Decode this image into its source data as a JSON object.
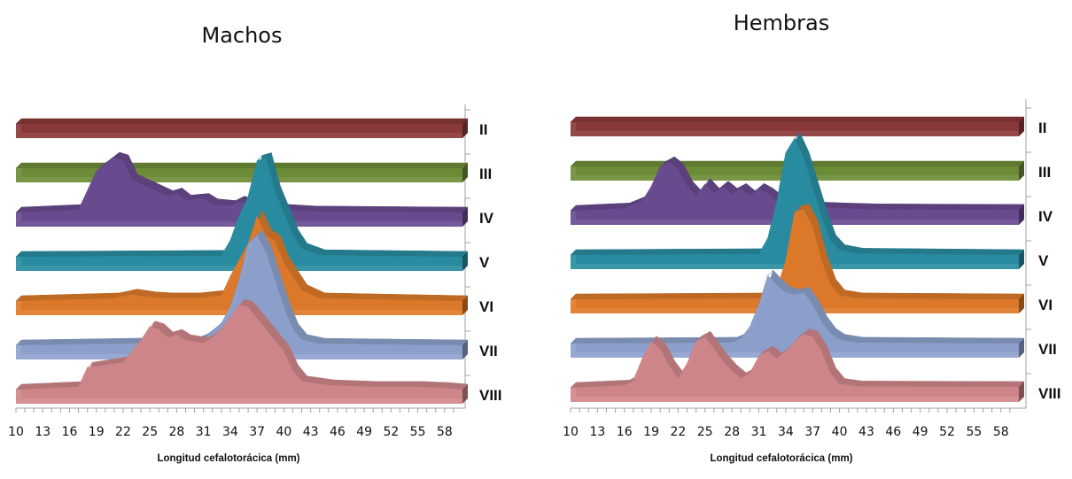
{
  "chart_data": [
    {
      "type": "area",
      "title": "Machos",
      "xlabel": "Longitud cefalotorácica  (mm)",
      "x_ticks": [
        10,
        13,
        16,
        19,
        22,
        25,
        28,
        31,
        34,
        37,
        40,
        43,
        46,
        49,
        52,
        55,
        58
      ],
      "xlim": [
        10,
        60
      ],
      "series_order_back_to_front": [
        "II",
        "III",
        "IV",
        "V",
        "VI",
        "VII",
        "VIII"
      ],
      "series": [
        {
          "name": "II",
          "color": "#8c3a3a",
          "values": [
            [
              10,
              0
            ],
            [
              60,
              0
            ]
          ]
        },
        {
          "name": "III",
          "color": "#6f8e38",
          "values": [
            [
              10,
              0
            ],
            [
              60,
              0
            ]
          ]
        },
        {
          "name": "IV",
          "color": "#6a4c92",
          "values": [
            [
              10,
              0
            ],
            [
              17,
              0.05
            ],
            [
              19,
              0.75
            ],
            [
              21,
              1.0
            ],
            [
              22,
              0.95
            ],
            [
              23,
              0.6
            ],
            [
              25,
              0.45
            ],
            [
              27,
              0.3
            ],
            [
              28,
              0.35
            ],
            [
              29,
              0.22
            ],
            [
              31,
              0.25
            ],
            [
              32,
              0.15
            ],
            [
              34,
              0.12
            ],
            [
              35,
              0.2
            ],
            [
              36,
              0.15
            ],
            [
              38,
              0.1
            ],
            [
              40,
              0.05
            ],
            [
              43,
              0.02
            ],
            [
              60,
              0
            ]
          ]
        },
        {
          "name": "V",
          "color": "#2a8ea3",
          "values": [
            [
              10,
              0
            ],
            [
              33,
              0.02
            ],
            [
              34,
              0.3
            ],
            [
              35,
              0.75
            ],
            [
              36,
              1.1
            ],
            [
              37,
              1.75
            ],
            [
              38,
              1.8
            ],
            [
              39,
              1.2
            ],
            [
              40,
              0.8
            ],
            [
              41,
              0.4
            ],
            [
              42,
              0.15
            ],
            [
              44,
              0.03
            ],
            [
              60,
              0
            ]
          ]
        },
        {
          "name": "VI",
          "color": "#e07b2a",
          "values": [
            [
              10,
              0
            ],
            [
              21,
              0.05
            ],
            [
              23,
              0.12
            ],
            [
              25,
              0.07
            ],
            [
              27,
              0.05
            ],
            [
              30,
              0.05
            ],
            [
              33,
              0.1
            ],
            [
              34,
              0.45
            ],
            [
              36,
              1.05
            ],
            [
              37,
              1.55
            ],
            [
              38,
              1.2
            ],
            [
              39,
              1.1
            ],
            [
              40,
              0.7
            ],
            [
              42,
              0.2
            ],
            [
              44,
              0.05
            ],
            [
              60,
              0
            ]
          ]
        },
        {
          "name": "VII",
          "color": "#8fa3cf",
          "values": [
            [
              10,
              0
            ],
            [
              30,
              0.05
            ],
            [
              31,
              0.12
            ],
            [
              32,
              0.25
            ],
            [
              33,
              0.4
            ],
            [
              34,
              0.7
            ],
            [
              35,
              1.2
            ],
            [
              36,
              1.85
            ],
            [
              37,
              2.0
            ],
            [
              38,
              1.7
            ],
            [
              39,
              1.2
            ],
            [
              40,
              0.7
            ],
            [
              41,
              0.3
            ],
            [
              42,
              0.1
            ],
            [
              44,
              0.03
            ],
            [
              60,
              0
            ]
          ]
        },
        {
          "name": "VIII",
          "color": "#d2888c",
          "values": [
            [
              10,
              0
            ],
            [
              17,
              0.05
            ],
            [
              18,
              0.4
            ],
            [
              20,
              0.45
            ],
            [
              22,
              0.5
            ],
            [
              24,
              0.9
            ],
            [
              25,
              1.15
            ],
            [
              26,
              1.1
            ],
            [
              27,
              0.95
            ],
            [
              28,
              1.0
            ],
            [
              29,
              0.9
            ],
            [
              31,
              0.85
            ],
            [
              32,
              0.95
            ],
            [
              33,
              1.1
            ],
            [
              35,
              1.55
            ],
            [
              36,
              1.5
            ],
            [
              38,
              1.1
            ],
            [
              40,
              0.7
            ],
            [
              41,
              0.35
            ],
            [
              42,
              0.15
            ],
            [
              45,
              0.08
            ],
            [
              50,
              0.05
            ],
            [
              55,
              0.05
            ],
            [
              58,
              0.03
            ],
            [
              60,
              0
            ]
          ]
        }
      ]
    },
    {
      "type": "area",
      "title": "Hembras",
      "xlabel": "Longitud cefalotorácica  (mm)",
      "x_ticks": [
        10,
        13,
        16,
        19,
        22,
        25,
        28,
        31,
        34,
        37,
        40,
        43,
        46,
        49,
        52,
        55,
        58
      ],
      "xlim": [
        10,
        60
      ],
      "series_order_back_to_front": [
        "II",
        "III",
        "IV",
        "V",
        "VI",
        "VII",
        "VIII"
      ],
      "series": [
        {
          "name": "II",
          "color": "#8c3a3a",
          "values": [
            [
              10,
              0
            ],
            [
              60,
              0
            ]
          ]
        },
        {
          "name": "III",
          "color": "#6f8e38",
          "values": [
            [
              10,
              0
            ],
            [
              60,
              0
            ]
          ]
        },
        {
          "name": "IV",
          "color": "#6a4c92",
          "values": [
            [
              10,
              0
            ],
            [
              16,
              0.05
            ],
            [
              18,
              0.2
            ],
            [
              19,
              0.5
            ],
            [
              20,
              0.9
            ],
            [
              21,
              1.0
            ],
            [
              22,
              0.85
            ],
            [
              23,
              0.5
            ],
            [
              24,
              0.3
            ],
            [
              25,
              0.55
            ],
            [
              26,
              0.35
            ],
            [
              27,
              0.5
            ],
            [
              28,
              0.35
            ],
            [
              29,
              0.45
            ],
            [
              30,
              0.3
            ],
            [
              31,
              0.45
            ],
            [
              32,
              0.35
            ],
            [
              33,
              0.2
            ],
            [
              35,
              0.1
            ],
            [
              37,
              0.07
            ],
            [
              40,
              0.05
            ],
            [
              44,
              0.03
            ],
            [
              60,
              0.02
            ]
          ]
        },
        {
          "name": "V",
          "color": "#2a8ea3",
          "values": [
            [
              10,
              0
            ],
            [
              31,
              0.02
            ],
            [
              32,
              0.35
            ],
            [
              33,
              1.1
            ],
            [
              34,
              2.1
            ],
            [
              35,
              2.4
            ],
            [
              36,
              2.0
            ],
            [
              37,
              1.4
            ],
            [
              38,
              0.8
            ],
            [
              39,
              0.3
            ],
            [
              40,
              0.1
            ],
            [
              42,
              0.03
            ],
            [
              60,
              0
            ]
          ]
        },
        {
          "name": "VI",
          "color": "#e07b2a",
          "values": [
            [
              10,
              0
            ],
            [
              32,
              0.02
            ],
            [
              33,
              0.2
            ],
            [
              34,
              0.8
            ],
            [
              35,
              1.8
            ],
            [
              36,
              1.85
            ],
            [
              37,
              1.5
            ],
            [
              38,
              0.8
            ],
            [
              39,
              0.3
            ],
            [
              40,
              0.08
            ],
            [
              42,
              0.02
            ],
            [
              60,
              0
            ]
          ]
        },
        {
          "name": "VII",
          "color": "#8fa3cf",
          "values": [
            [
              10,
              0
            ],
            [
              28,
              0.02
            ],
            [
              29,
              0.1
            ],
            [
              30,
              0.35
            ],
            [
              31,
              0.8
            ],
            [
              32,
              1.4
            ],
            [
              33,
              1.2
            ],
            [
              34,
              1.05
            ],
            [
              35,
              1.0
            ],
            [
              36,
              1.05
            ],
            [
              37,
              0.8
            ],
            [
              38,
              0.45
            ],
            [
              39,
              0.2
            ],
            [
              40,
              0.08
            ],
            [
              42,
              0.02
            ],
            [
              60,
              0
            ]
          ]
        },
        {
          "name": "VIII",
          "color": "#d2888c",
          "values": [
            [
              10,
              0
            ],
            [
              16,
              0.05
            ],
            [
              17,
              0.15
            ],
            [
              18,
              0.6
            ],
            [
              19,
              0.95
            ],
            [
              20,
              0.8
            ],
            [
              21,
              0.45
            ],
            [
              22,
              0.2
            ],
            [
              23,
              0.5
            ],
            [
              24,
              0.95
            ],
            [
              25,
              1.05
            ],
            [
              26,
              0.8
            ],
            [
              27,
              0.55
            ],
            [
              28,
              0.35
            ],
            [
              29,
              0.2
            ],
            [
              30,
              0.3
            ],
            [
              31,
              0.65
            ],
            [
              32,
              0.75
            ],
            [
              33,
              0.6
            ],
            [
              34,
              0.75
            ],
            [
              35,
              0.95
            ],
            [
              36,
              1.1
            ],
            [
              37,
              1.05
            ],
            [
              38,
              0.75
            ],
            [
              39,
              0.3
            ],
            [
              40,
              0.08
            ],
            [
              42,
              0.03
            ],
            [
              60,
              0.02
            ]
          ]
        }
      ]
    }
  ]
}
